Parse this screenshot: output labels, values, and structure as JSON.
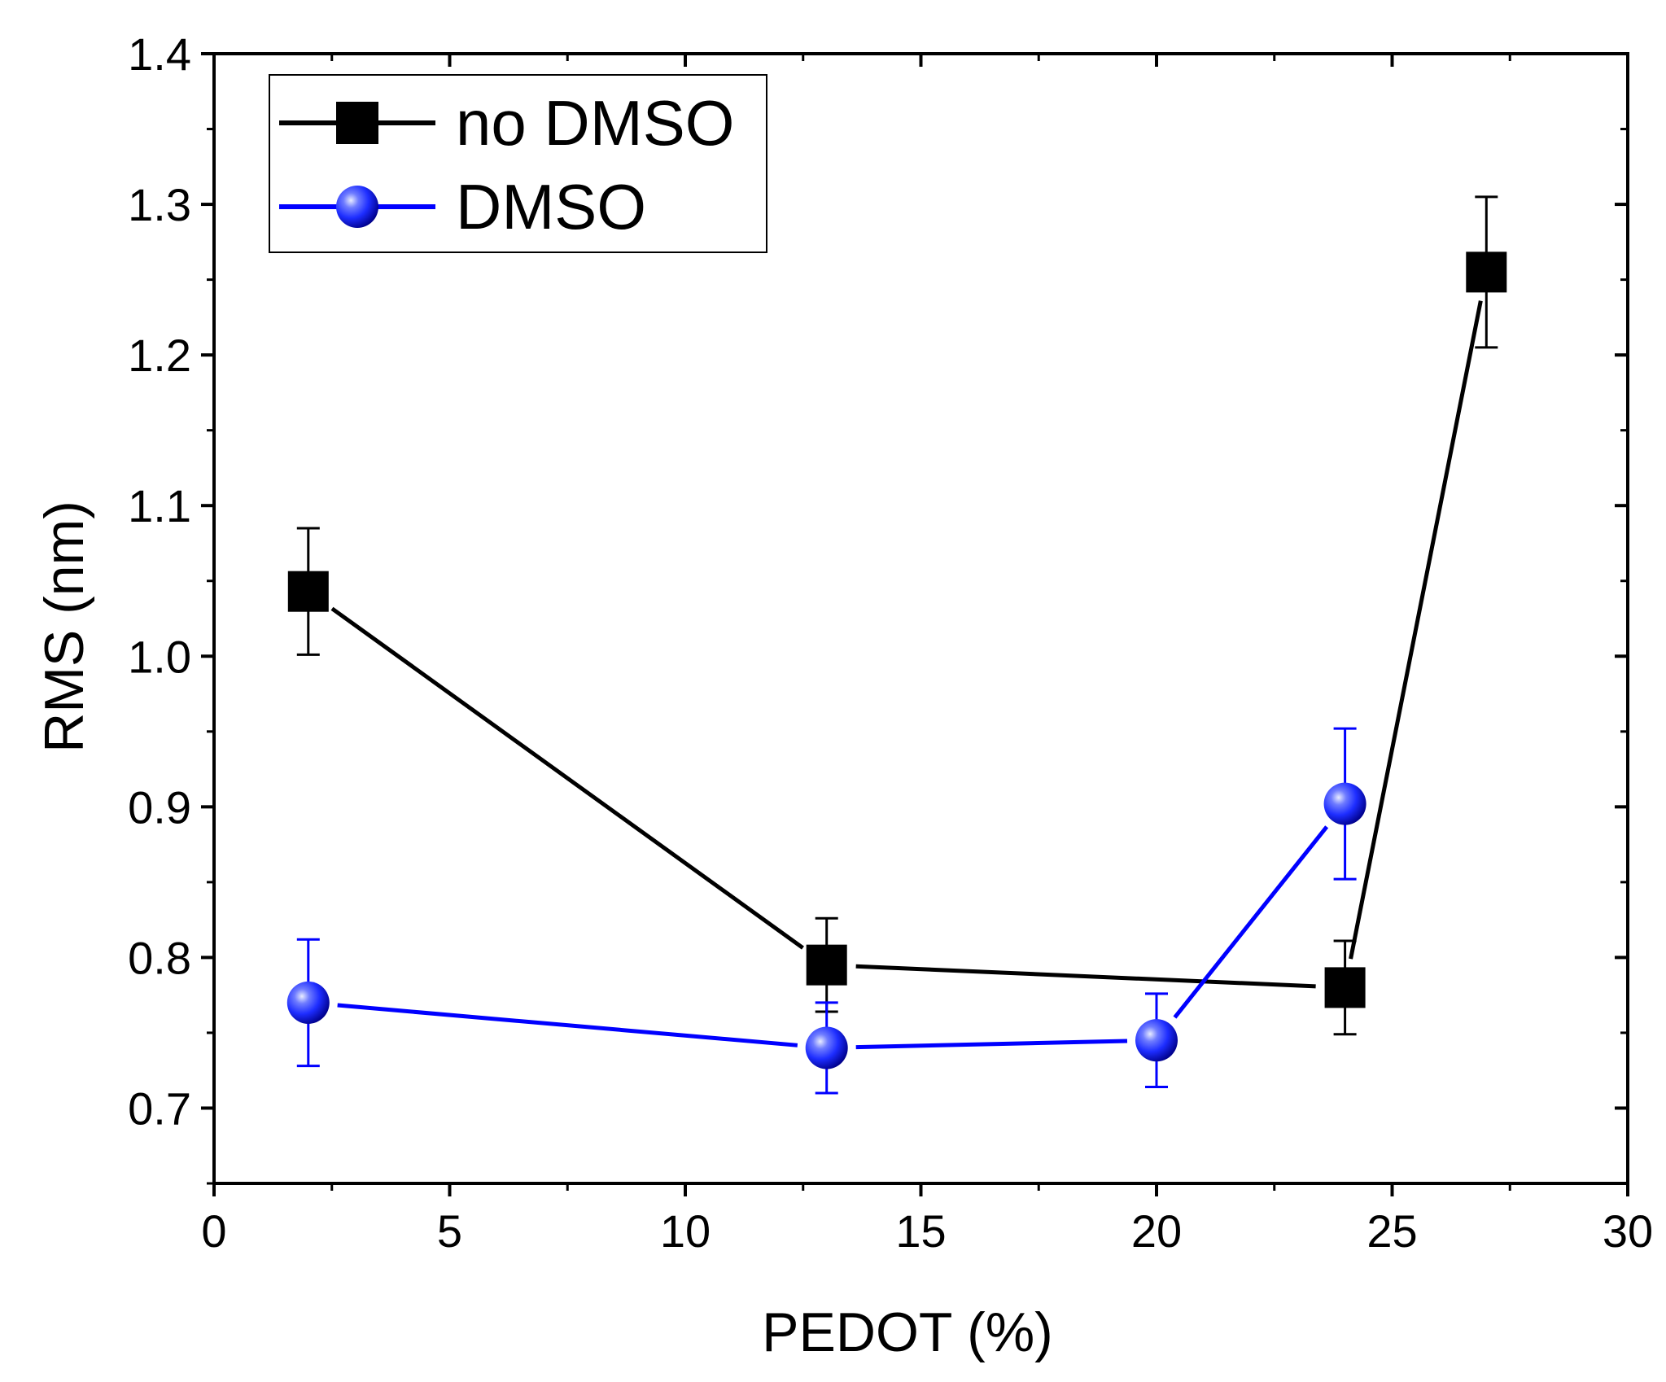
{
  "chart_data": {
    "type": "line",
    "xlabel": "PEDOT (%)",
    "ylabel": "RMS (nm)",
    "xlim": [
      0,
      30
    ],
    "ylim": [
      0.65,
      1.4
    ],
    "xticks": [
      "0",
      "5",
      "10",
      "15",
      "20",
      "25",
      "30"
    ],
    "yticks": [
      "0.7",
      "0.8",
      "0.9",
      "1.0",
      "1.1",
      "1.2",
      "1.3",
      "1.4"
    ],
    "grid": false,
    "legend_position": "top-left",
    "series": [
      {
        "name": "no DMSO",
        "color": "#000000",
        "marker": "square",
        "x": [
          2,
          13,
          24,
          27
        ],
        "y": [
          1.043,
          0.795,
          0.78,
          1.255
        ],
        "error": [
          0.042,
          0.031,
          0.031,
          0.05
        ]
      },
      {
        "name": "DMSO",
        "color": "#0000ff",
        "marker": "sphere",
        "x": [
          2,
          13,
          20,
          24
        ],
        "y": [
          0.77,
          0.74,
          0.745,
          0.902
        ],
        "error": [
          0.042,
          0.03,
          0.031,
          0.05
        ]
      }
    ]
  }
}
